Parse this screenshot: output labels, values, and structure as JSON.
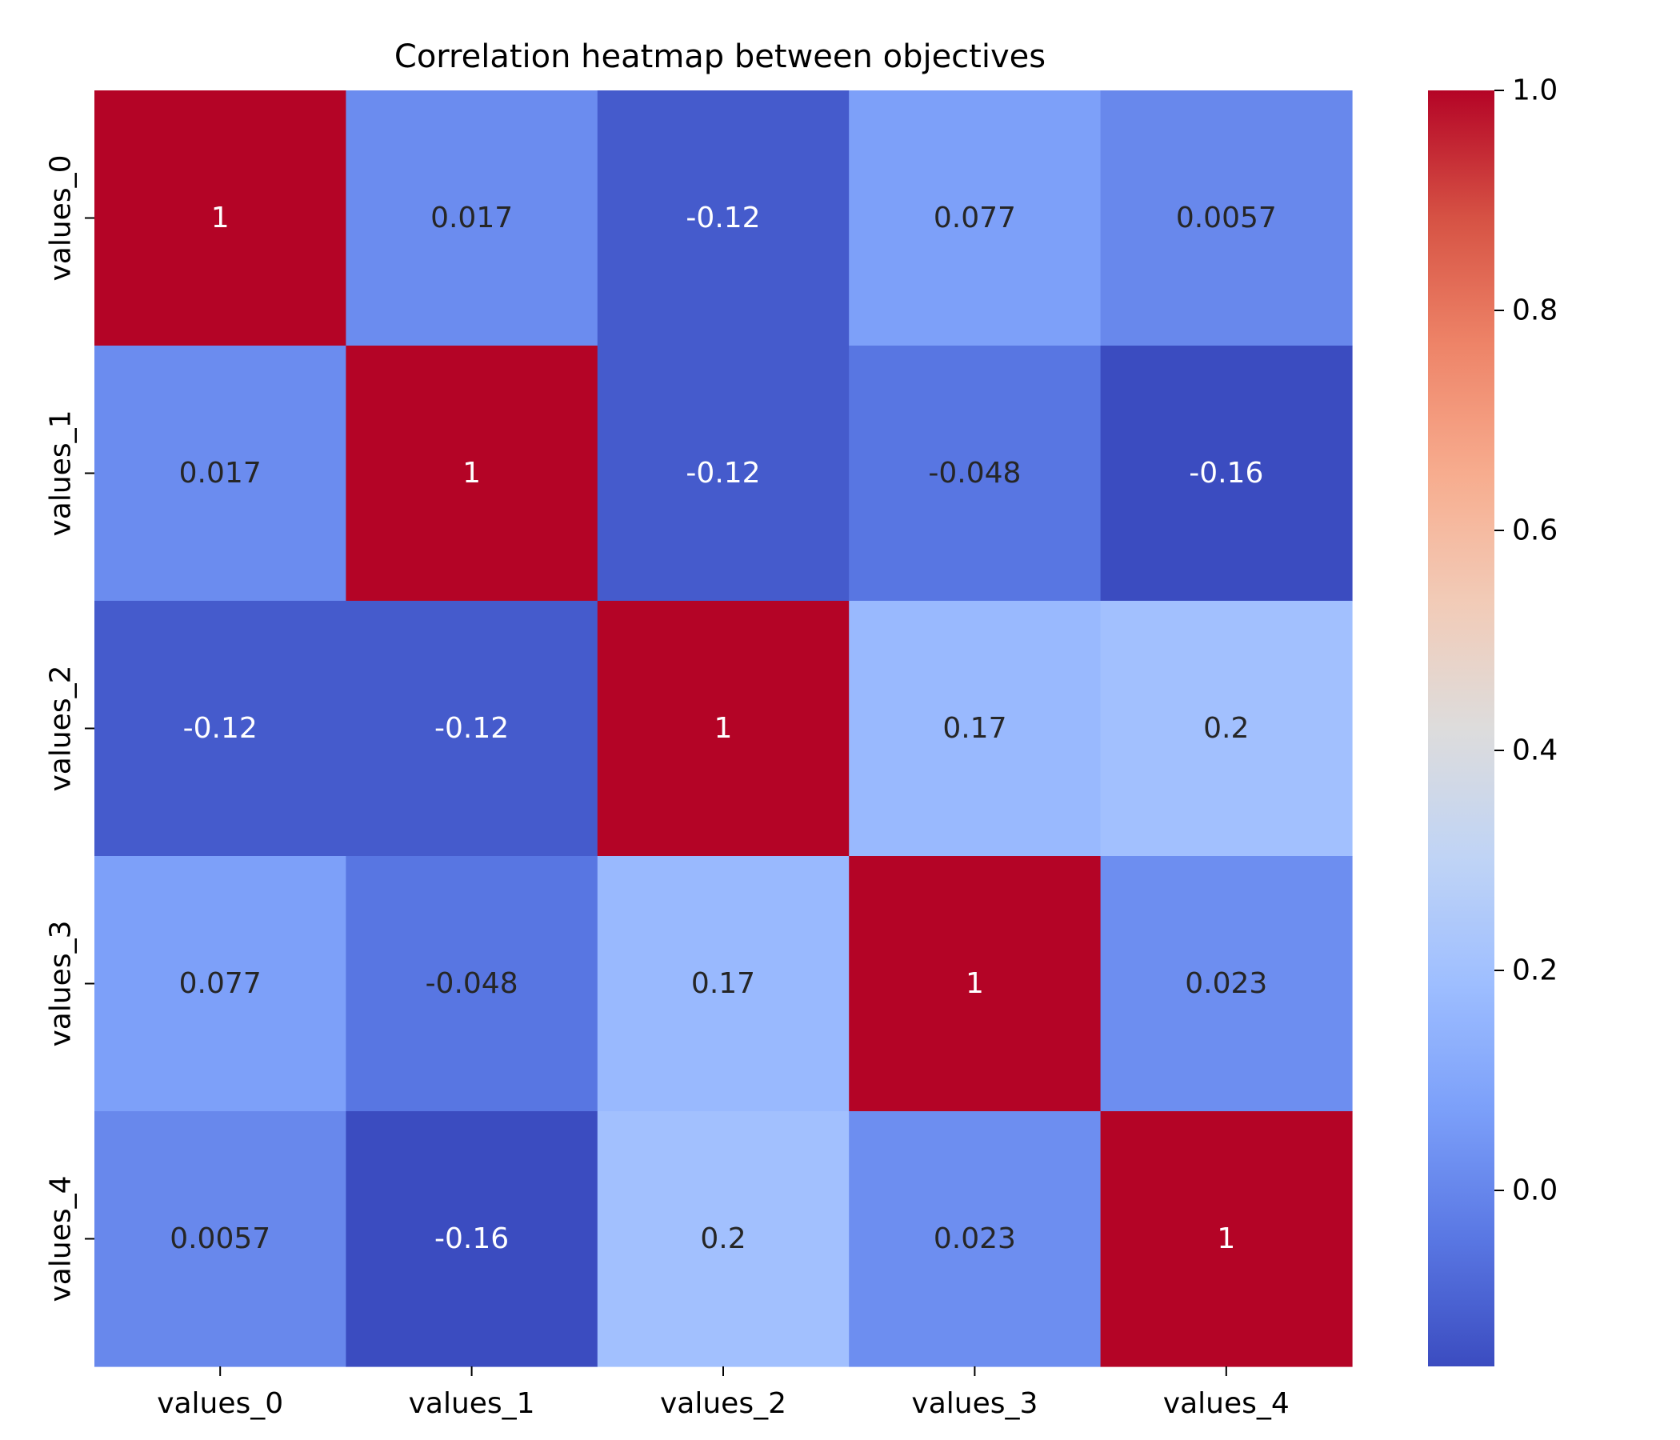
{
  "chart_data": {
    "type": "heatmap",
    "title": "Correlation heatmap between objectives",
    "xlabel": "",
    "ylabel": "",
    "x_categories": [
      "values_0",
      "values_1",
      "values_2",
      "values_3",
      "values_4"
    ],
    "y_categories": [
      "values_0",
      "values_1",
      "values_2",
      "values_3",
      "values_4"
    ],
    "values": [
      [
        1,
        0.017,
        -0.12,
        0.077,
        0.0057
      ],
      [
        0.017,
        1,
        -0.12,
        -0.048,
        -0.16
      ],
      [
        -0.12,
        -0.12,
        1,
        0.17,
        0.2
      ],
      [
        0.077,
        -0.048,
        0.17,
        1,
        0.023
      ],
      [
        0.0057,
        -0.16,
        0.2,
        0.023,
        1
      ]
    ],
    "cell_labels": [
      [
        "1",
        "0.017",
        "-0.12",
        "0.077",
        "0.0057"
      ],
      [
        "0.017",
        "1",
        "-0.12",
        "-0.048",
        "-0.16"
      ],
      [
        "-0.12",
        "-0.12",
        "1",
        "0.17",
        "0.2"
      ],
      [
        "0.077",
        "-0.048",
        "0.17",
        "1",
        "0.023"
      ],
      [
        "0.0057",
        "-0.16",
        "0.2",
        "0.023",
        "1"
      ]
    ],
    "colormap": "coolwarm",
    "colormap_stops": [
      "#3b4cc0",
      "#5977e3",
      "#7b9ff9",
      "#9ebeff",
      "#c0d4f5",
      "#dddcdc",
      "#f2cbb7",
      "#f7ac8e",
      "#ee8468",
      "#d65244",
      "#b40426"
    ],
    "vmin": -0.16,
    "vmax": 1.0,
    "colorbar_ticks": [
      {
        "value": 0.0,
        "label": "0.0"
      },
      {
        "value": 0.2,
        "label": "0.2"
      },
      {
        "value": 0.4,
        "label": "0.4"
      },
      {
        "value": 0.6,
        "label": "0.6"
      },
      {
        "value": 0.8,
        "label": "0.8"
      },
      {
        "value": 1.0,
        "label": "1.0"
      }
    ],
    "annotation_colors": {
      "light": "#ffffff",
      "dark": "#262626"
    }
  }
}
